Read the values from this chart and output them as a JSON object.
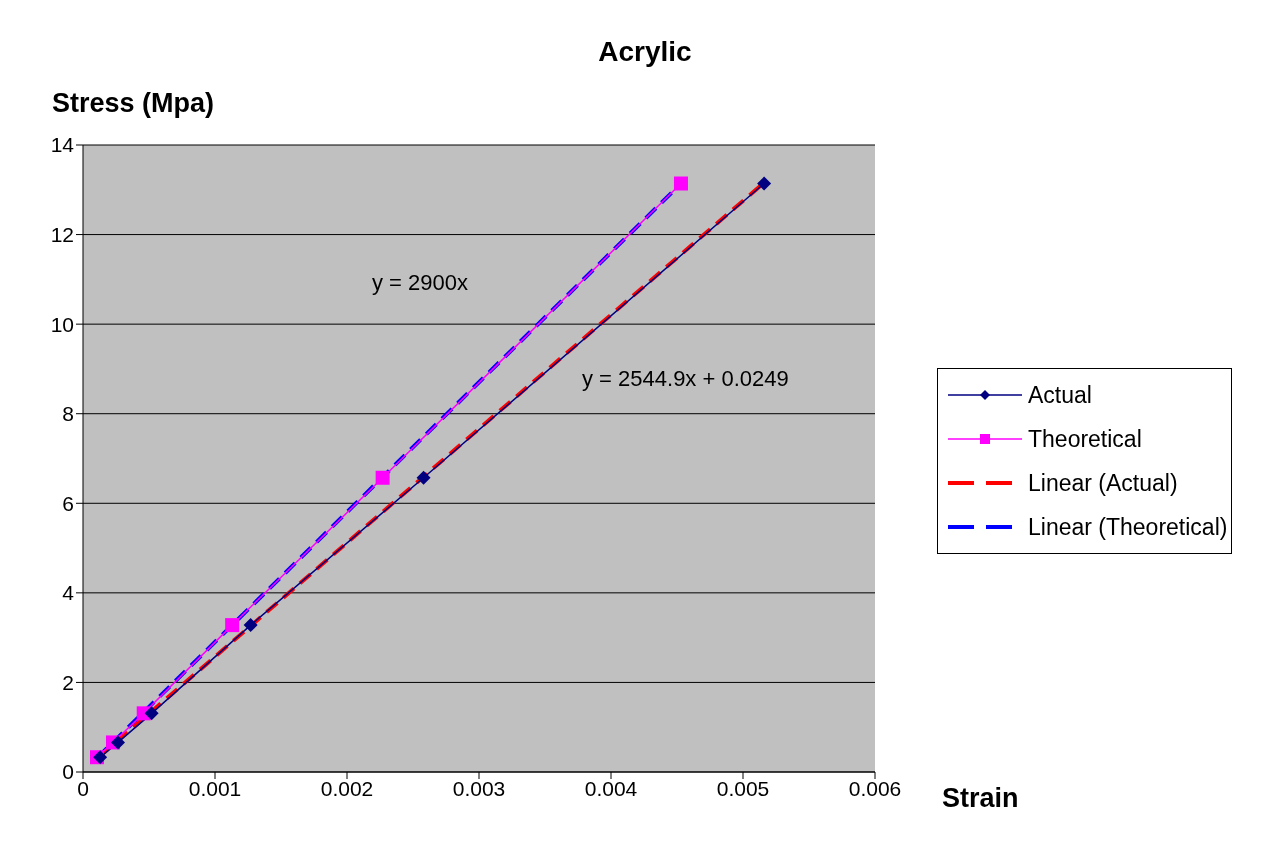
{
  "chart_data": {
    "type": "line",
    "title": "Acrylic",
    "xlabel": "Strain",
    "ylabel": "Stress (Mpa)",
    "xlim": [
      0,
      0.006
    ],
    "xticks": [
      0,
      0.001,
      0.002,
      0.003,
      0.004,
      0.005,
      0.006
    ],
    "ylim": [
      0,
      14
    ],
    "yticks": [
      0,
      2,
      4,
      6,
      8,
      10,
      12,
      14
    ],
    "grid": "y",
    "legend": "right",
    "series": [
      {
        "name": "Actual",
        "color": "#000080",
        "marker": "diamond",
        "line_style": "solid",
        "x": [
          0.00013,
          0.000265,
          0.00052,
          0.00127,
          0.00258,
          0.00516
        ],
        "values": [
          0.33,
          0.66,
          1.31,
          3.28,
          6.57,
          13.14
        ]
      },
      {
        "name": "Theoretical",
        "color": "#ff00ff",
        "marker": "square",
        "line_style": "solid",
        "x": [
          0.000106,
          0.000227,
          0.00046,
          0.00113,
          0.00227,
          0.00453
        ],
        "values": [
          0.33,
          0.66,
          1.31,
          3.28,
          6.57,
          13.14
        ]
      },
      {
        "name": "Linear (Actual)",
        "color": "#ff0000",
        "marker": "none",
        "line_style": "dashed",
        "x": [
          0.00013,
          0.00516
        ],
        "values": [
          0.36,
          13.16
        ]
      },
      {
        "name": "Linear (Theoretical)",
        "color": "#0000ff",
        "marker": "none",
        "line_style": "dashed",
        "x": [
          0.000106,
          0.00453
        ],
        "values": [
          0.31,
          13.14
        ]
      }
    ],
    "annotations": [
      "y = 2900x",
      "y = 2544.9x + 0.0249"
    ]
  }
}
